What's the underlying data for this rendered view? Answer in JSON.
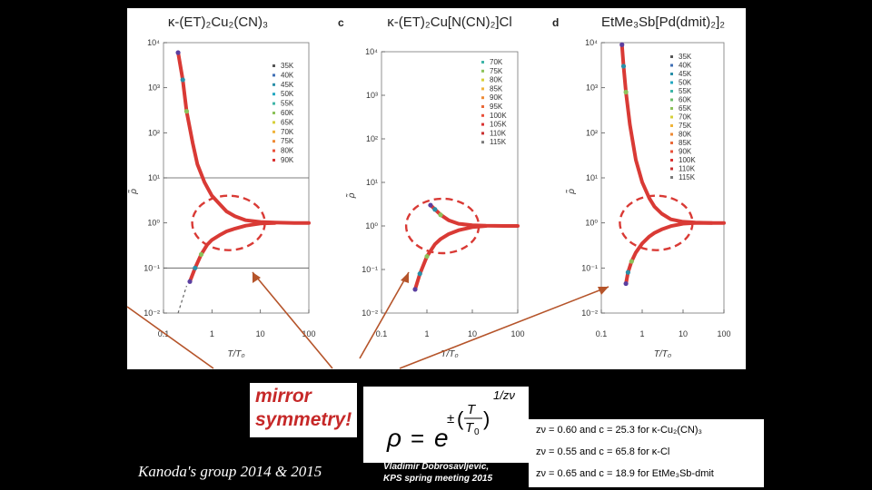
{
  "chart_data": [
    {
      "type": "scatter",
      "panel": "",
      "title": "κ-(ET)₂Cu₂(CN)₃",
      "xlabel": "T/T₀",
      "ylabel": "ρ̃",
      "xscale": "log",
      "yscale": "log",
      "xlim": [
        0.1,
        100
      ],
      "ylim": [
        0.01,
        10000
      ],
      "xticks": [
        "0.1",
        "1",
        "10",
        "100"
      ],
      "yticks": [
        "10⁻²",
        "10⁻¹",
        "10⁰",
        "10¹",
        "10²",
        "10³",
        "10⁴"
      ],
      "legend": [
        "35K",
        "40K",
        "45K",
        "50K",
        "55K",
        "60K",
        "65K",
        "70K",
        "75K",
        "80K",
        "90K"
      ],
      "legend_colors": [
        "#555555",
        "#3f6fb5",
        "#2a8fa8",
        "#23a8c2",
        "#3fb5a8",
        "#8cc25a",
        "#d7d03a",
        "#f0b43a",
        "#ee8a35",
        "#e9503a",
        "#d93333"
      ],
      "upper_branch": {
        "x": [
          0.2,
          0.25,
          0.3,
          0.4,
          0.5,
          0.7,
          1,
          1.5,
          2,
          3,
          5,
          10,
          20,
          50,
          100
        ],
        "y": [
          6000,
          1500,
          300,
          60,
          20,
          8,
          4,
          2.5,
          1.8,
          1.4,
          1.15,
          1.05,
          1.02,
          1.0,
          1.0
        ]
      },
      "lower_branch": {
        "x": [
          0.35,
          0.45,
          0.6,
          0.8,
          1,
          1.5,
          2,
          3,
          5,
          10,
          20
        ],
        "y": [
          0.05,
          0.1,
          0.2,
          0.33,
          0.42,
          0.55,
          0.65,
          0.75,
          0.87,
          0.97,
          1.0
        ]
      },
      "dashed_extrapolation": {
        "x": [
          0.2,
          0.3
        ],
        "y": [
          0.01,
          0.04
        ]
      },
      "inset_lines_y": [
        10,
        0.1
      ]
    },
    {
      "type": "scatter",
      "panel": "c",
      "title": "κ-(ET)₂Cu[N(CN)₂]Cl",
      "xlabel": "T/T₀",
      "ylabel": "ρ̃",
      "xscale": "log",
      "yscale": "log",
      "xlim": [
        0.1,
        100
      ],
      "ylim": [
        0.01,
        10000
      ],
      "xticks": [
        "0.1",
        "1",
        "10",
        "100"
      ],
      "yticks": [
        "10⁻²",
        "10⁻¹",
        "10⁰",
        "10¹",
        "10²",
        "10³",
        "10⁴"
      ],
      "legend": [
        "70K",
        "75K",
        "80K",
        "85K",
        "90K",
        "95K",
        "100K",
        "105K",
        "110K",
        "115K"
      ],
      "legend_colors": [
        "#3fb5a8",
        "#8cc25a",
        "#d7d03a",
        "#f0b43a",
        "#ee8a35",
        "#e96a3a",
        "#e9503a",
        "#d93333",
        "#c93030",
        "#7a7a7a"
      ],
      "upper_branch": {
        "x": [
          1.2,
          1.5,
          2,
          3,
          5,
          10,
          20,
          50,
          100
        ],
        "y": [
          3.0,
          2.4,
          1.8,
          1.35,
          1.12,
          1.04,
          1.01,
          1.0,
          1.0
        ]
      },
      "lower_branch": {
        "x": [
          0.55,
          0.7,
          1,
          1.5,
          2,
          3,
          5,
          10,
          20
        ],
        "y": [
          0.035,
          0.08,
          0.2,
          0.38,
          0.5,
          0.65,
          0.8,
          0.94,
          1.0
        ]
      }
    },
    {
      "type": "scatter",
      "panel": "d",
      "title": "EtMe₃Sb[Pd(dmit)₂]₂",
      "xlabel": "T/T₀",
      "ylabel": "ρ̃",
      "xscale": "log",
      "yscale": "log",
      "xlim": [
        0.1,
        100
      ],
      "ylim": [
        0.01,
        10000
      ],
      "xticks": [
        "0.1",
        "1",
        "10",
        "100"
      ],
      "yticks": [
        "10⁻²",
        "10⁻¹",
        "10⁰",
        "10¹",
        "10²",
        "10³",
        "10⁴"
      ],
      "legend": [
        "35K",
        "40K",
        "45K",
        "50K",
        "55K",
        "60K",
        "65K",
        "70K",
        "75K",
        "80K",
        "85K",
        "90K",
        "100K",
        "110K",
        "115K"
      ],
      "legend_colors": [
        "#555555",
        "#3f6fb5",
        "#2a8fa8",
        "#23a8c2",
        "#3fb5a8",
        "#6cbc6a",
        "#8cc25a",
        "#d7d03a",
        "#f0b43a",
        "#ee8a35",
        "#e96a3a",
        "#e9503a",
        "#d93333",
        "#c93030",
        "#7a7a7a"
      ],
      "upper_branch": {
        "x": [
          0.32,
          0.35,
          0.4,
          0.5,
          0.7,
          1,
          1.5,
          2,
          3,
          5,
          10,
          20,
          50,
          100
        ],
        "y": [
          9000,
          3000,
          800,
          150,
          25,
          8,
          3.5,
          2.3,
          1.6,
          1.2,
          1.06,
          1.02,
          1.0,
          1.0
        ]
      },
      "lower_branch": {
        "x": [
          0.4,
          0.45,
          0.55,
          0.7,
          1,
          1.5,
          2,
          3,
          5,
          10,
          20,
          50
        ],
        "y": [
          0.045,
          0.08,
          0.14,
          0.22,
          0.35,
          0.5,
          0.6,
          0.72,
          0.85,
          0.96,
          1.0,
          1.0
        ]
      }
    }
  ],
  "annotations": {
    "mirror_line1": "mirror",
    "mirror_line2": "symmetry!",
    "credit": "Kanoda's group 2014 & 2015",
    "speaker_line1": "Vladimir Dobrosavljevic,",
    "speaker_line2": "KPS spring meeting 2015",
    "formula_rho": "ρ",
    "formula_eq": "=",
    "formula_e": "e",
    "formula_pm": "±",
    "formula_T": "T",
    "formula_T0": "T",
    "formula_sub0": "0",
    "formula_exp": "1/zν",
    "params": [
      "zν = 0.60 and c = 25.3 for κ-Cu₂(CN)₃",
      "zν = 0.55 and c = 65.8 for κ-Cl",
      "zν = 0.65 and c = 18.9 for EtMe₃Sb-dmit"
    ]
  },
  "colors": {
    "curve": "#d93a35",
    "ellipse": "#d93a35",
    "arrow": "#b5542a",
    "accent": "#c62828"
  }
}
